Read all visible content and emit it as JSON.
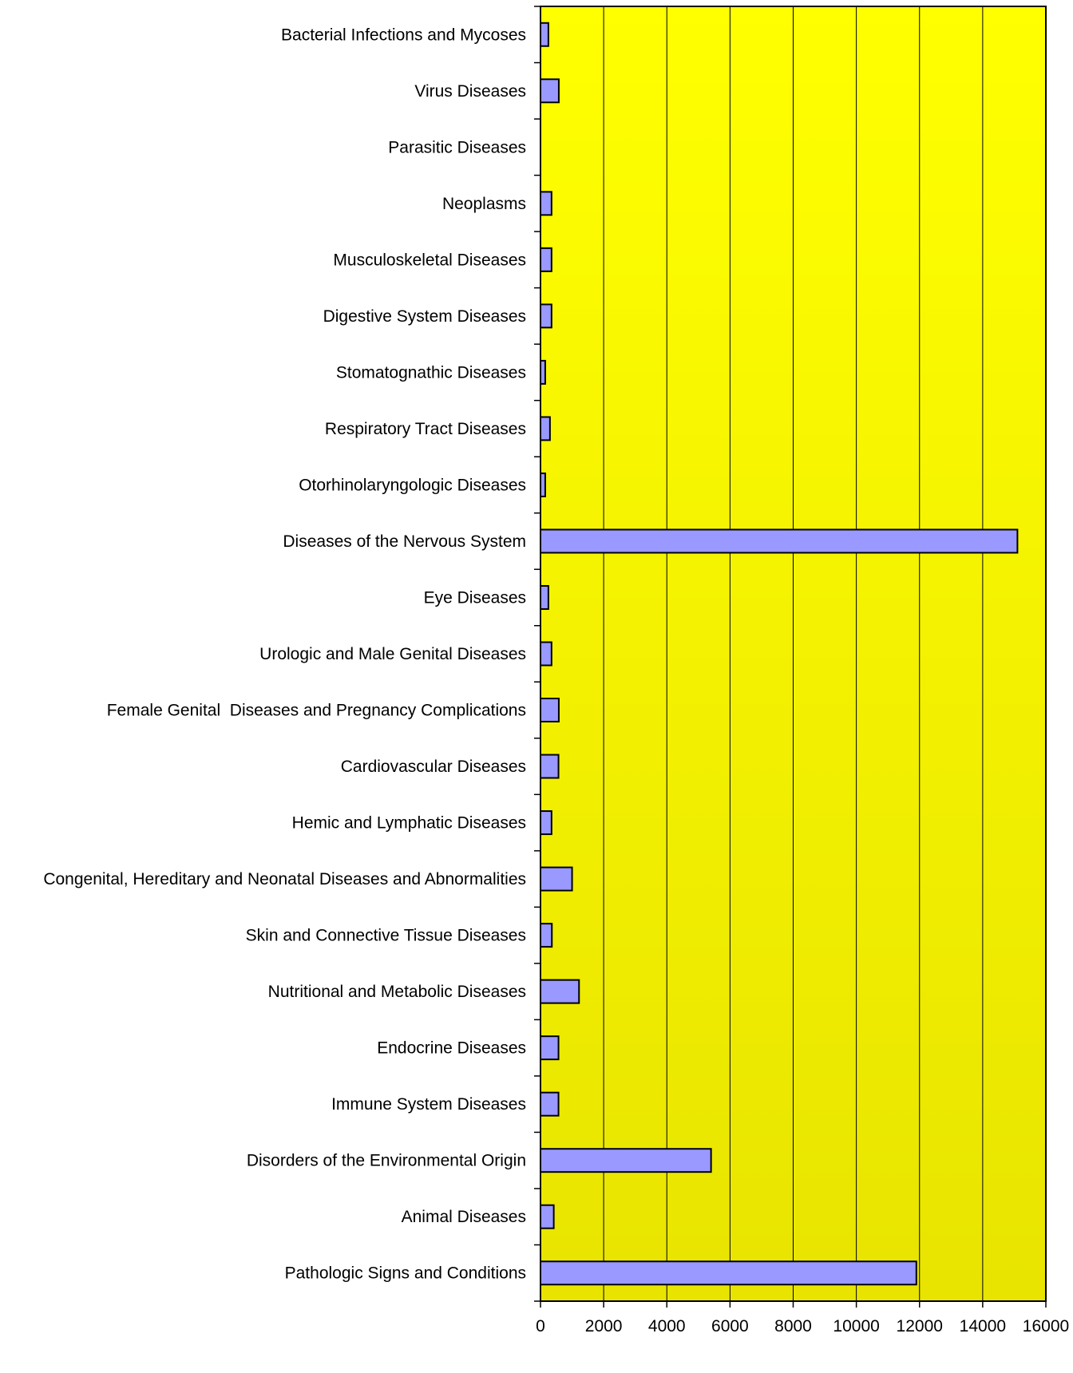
{
  "chart_data": {
    "type": "bar",
    "orientation": "horizontal",
    "title": "",
    "xlabel": "",
    "ylabel": "",
    "categories": [
      "Bacterial Infections and Mycoses",
      "Virus Diseases",
      "Parasitic Diseases",
      "Neoplasms",
      "Musculoskeletal Diseases",
      "Digestive System Diseases",
      "Stomatognathic Diseases",
      "Respiratory Tract Diseases",
      "Otorhinolaryngologic Diseases",
      "Diseases of the Nervous System",
      "Eye Diseases",
      "Urologic and Male Genital Diseases",
      "Female Genital  Diseases and Pregnancy Complications",
      "Cardiovascular Diseases",
      "Hemic and Lymphatic Diseases",
      "Congenital, Hereditary and Neonatal Diseases and Abnormalities",
      "Skin and Connective Tissue Diseases",
      "Nutritional and Metabolic Diseases",
      "Endocrine Diseases",
      "Immune System Diseases",
      "Disorders of the Environmental Origin",
      "Animal Diseases",
      "Pathologic Signs and Conditions"
    ],
    "values": [
      250,
      580,
      0,
      350,
      350,
      350,
      150,
      300,
      150,
      15100,
      250,
      350,
      580,
      570,
      350,
      1000,
      360,
      1220,
      570,
      570,
      5400,
      420,
      11900
    ],
    "xlim": [
      0,
      16000
    ],
    "xticks": [
      0,
      2000,
      4000,
      6000,
      8000,
      10000,
      12000,
      14000,
      16000
    ],
    "grid": true,
    "legend": "none",
    "colors": {
      "bar_fill": "#9999ff",
      "bar_stroke": "#000000",
      "plot_bg_top": "#ffff00",
      "plot_bg_bottom": "#e8e400",
      "gridline": "#000000"
    }
  }
}
